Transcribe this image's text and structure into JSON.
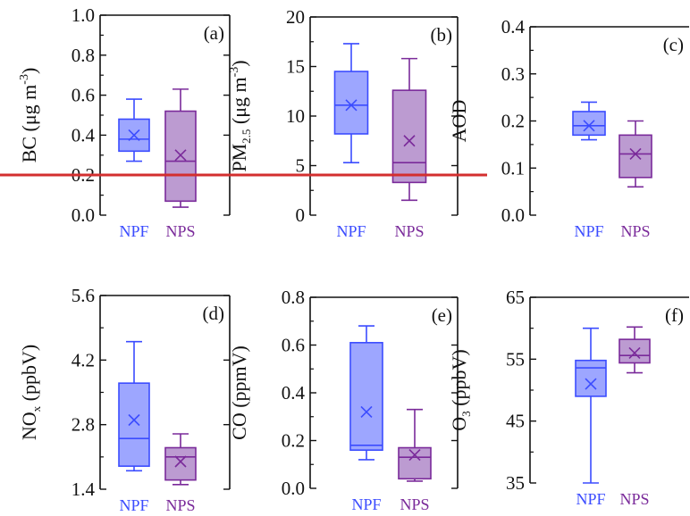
{
  "colors": {
    "NPF": "#3b4cff",
    "NPF_fill": "#7c88ff",
    "NPS": "#7a2a9a",
    "NPS_fill": "#a679c2",
    "overlay_line": "#d32f2f"
  },
  "chart_data": [
    {
      "type": "box",
      "panel": "(a)",
      "ylabel": {
        "base": "BC (μg m",
        "sup": "-3",
        "tail": ")"
      },
      "ylim": [
        0.0,
        1.0
      ],
      "yticks": [
        "0.0",
        "0.2",
        "0.4",
        "0.6",
        "0.8",
        "1.0"
      ],
      "categories": [
        "NPF",
        "NPS"
      ],
      "series": [
        {
          "name": "NPF",
          "min": 0.27,
          "q1": 0.32,
          "median": 0.38,
          "q3": 0.48,
          "max": 0.58,
          "mean": 0.4
        },
        {
          "name": "NPS",
          "min": 0.04,
          "q1": 0.07,
          "median": 0.27,
          "q3": 0.52,
          "max": 0.63,
          "mean": 0.3
        }
      ]
    },
    {
      "type": "box",
      "panel": "(b)",
      "ylabel": {
        "base": "PM",
        "sub": "2.5",
        "mid": " (μg m",
        "sup": "-3",
        "tail": ")"
      },
      "ylim": [
        0,
        20
      ],
      "yticks": [
        "0",
        "5",
        "10",
        "15",
        "20"
      ],
      "categories": [
        "NPF",
        "NPS"
      ],
      "series": [
        {
          "name": "NPF",
          "min": 5.3,
          "q1": 8.2,
          "median": 11.1,
          "q3": 14.5,
          "max": 17.3,
          "mean": 11.1
        },
        {
          "name": "NPS",
          "min": 1.5,
          "q1": 3.3,
          "median": 5.3,
          "q3": 12.6,
          "max": 15.8,
          "mean": 7.5
        }
      ]
    },
    {
      "type": "box",
      "panel": "(c)",
      "ylabel": {
        "base": "AOD"
      },
      "ylim": [
        0.0,
        0.4
      ],
      "yticks": [
        "0.0",
        "0.1",
        "0.2",
        "0.3",
        "0.4"
      ],
      "categories": [
        "NPF",
        "NPS"
      ],
      "series": [
        {
          "name": "NPF",
          "min": 0.16,
          "q1": 0.17,
          "median": 0.19,
          "q3": 0.22,
          "max": 0.24,
          "mean": 0.19
        },
        {
          "name": "NPS",
          "min": 0.06,
          "q1": 0.08,
          "median": 0.13,
          "q3": 0.17,
          "max": 0.2,
          "mean": 0.13
        }
      ]
    },
    {
      "type": "box",
      "panel": "(d)",
      "ylabel": {
        "base": "NO",
        "sub": "x",
        "mid": " (ppbV)"
      },
      "ylim": [
        1.4,
        5.6
      ],
      "yticks": [
        "1.4",
        "2.8",
        "4.2",
        "5.6"
      ],
      "categories": [
        "NPF",
        "NPS"
      ],
      "series": [
        {
          "name": "NPF",
          "min": 1.8,
          "q1": 1.9,
          "median": 2.5,
          "q3": 3.7,
          "max": 4.6,
          "mean": 2.9
        },
        {
          "name": "NPS",
          "min": 1.5,
          "q1": 1.6,
          "median": 2.1,
          "q3": 2.3,
          "max": 2.6,
          "mean": 2.0
        }
      ]
    },
    {
      "type": "box",
      "panel": "(e)",
      "ylabel": {
        "base": "CO (ppmV)"
      },
      "ylim": [
        0.0,
        0.8
      ],
      "yticks": [
        "0.0",
        "0.2",
        "0.4",
        "0.6",
        "0.8"
      ],
      "categories": [
        "NPF",
        "NPS"
      ],
      "series": [
        {
          "name": "NPF",
          "min": 0.12,
          "q1": 0.16,
          "median": 0.18,
          "q3": 0.61,
          "max": 0.68,
          "mean": 0.32
        },
        {
          "name": "NPS",
          "min": 0.03,
          "q1": 0.04,
          "median": 0.13,
          "q3": 0.17,
          "max": 0.33,
          "mean": 0.14
        }
      ]
    },
    {
      "type": "box",
      "panel": "(f)",
      "ylabel": {
        "base": "O",
        "sub": "3",
        "mid": " (ppbV)"
      },
      "ylim": [
        35,
        65
      ],
      "yticks": [
        "35",
        "45",
        "55",
        "65"
      ],
      "categories": [
        "NPF",
        "NPS"
      ],
      "series": [
        {
          "name": "NPF",
          "min": 35.0,
          "q1": 49.0,
          "median": 53.6,
          "q3": 54.8,
          "max": 60.0,
          "mean": 51.0
        },
        {
          "name": "NPS",
          "min": 52.8,
          "q1": 54.4,
          "median": 55.6,
          "q3": 58.2,
          "max": 60.2,
          "mean": 56.0
        }
      ]
    }
  ]
}
